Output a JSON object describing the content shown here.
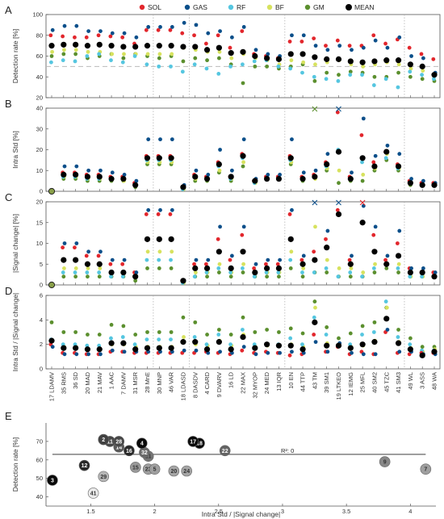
{
  "colors": {
    "SOL": "#e2262c",
    "GAS": "#0b4f8a",
    "RF": "#55c6e0",
    "BF": "#d7e25e",
    "GM": "#5b8f2e",
    "MEAN": "#000000",
    "axis": "#555555",
    "guide": "#aaaaaa"
  },
  "legend": [
    "SOL",
    "GAS",
    "RF",
    "BF",
    "GM",
    "MEAN"
  ],
  "features": [
    "17 LDAMV",
    "35 RMS",
    "36 SD",
    "20 MAD",
    "21 MAV",
    "1 AAC",
    "7 DAMV",
    "31 MSR",
    "28 MnE",
    "30 MNP",
    "46 VAR",
    "18 LDASD",
    "8 DASDV",
    "4 CARD",
    "9 DVARV",
    "16 LD",
    "22 MAX",
    "32 MYOP",
    "24 MED",
    "13 IQR",
    "10 EN",
    "44 TTP",
    "43 TM",
    "39 SM1",
    "19 LTKEO",
    "12 IEMG",
    "25 MFL",
    "40 SM2",
    "45 TZC",
    "41 SM3",
    "49 WL",
    "3 ASS",
    "48 WA"
  ],
  "group_breaks": [
    8.5,
    11.5,
    19.5,
    29.5
  ],
  "chart_data": [
    {
      "id": "A",
      "type": "scatter",
      "ylabel": "Detection rate [%]",
      "ylim": [
        20,
        100
      ],
      "yticks": [
        20,
        40,
        60,
        80,
        100
      ],
      "reference_line": 50,
      "series": [
        {
          "name": "SOL",
          "values": [
            80,
            79,
            78,
            78,
            80,
            79,
            78,
            72,
            85,
            85,
            85,
            82,
            80,
            72,
            80,
            68,
            84,
            62,
            60,
            58,
            74,
            74,
            77,
            70,
            75,
            70,
            70,
            80,
            72,
            76,
            68,
            62,
            57
          ]
        },
        {
          "name": "GAS",
          "values": [
            85,
            89,
            89,
            84,
            84,
            82,
            82,
            78,
            88,
            88,
            88,
            92,
            90,
            82,
            84,
            78,
            88,
            66,
            62,
            60,
            80,
            80,
            70,
            66,
            70,
            66,
            68,
            75,
            68,
            78,
            60,
            58,
            44
          ]
        },
        {
          "name": "RF",
          "values": [
            54,
            56,
            55,
            60,
            62,
            56,
            54,
            60,
            52,
            50,
            50,
            45,
            52,
            48,
            43,
            50,
            52,
            55,
            56,
            50,
            48,
            44,
            40,
            38,
            36,
            42,
            42,
            32,
            38,
            30,
            45,
            42,
            38
          ]
        },
        {
          "name": "BF",
          "values": [
            64,
            66,
            66,
            64,
            64,
            62,
            62,
            62,
            62,
            62,
            62,
            68,
            66,
            64,
            64,
            58,
            62,
            58,
            56,
            52,
            56,
            54,
            52,
            54,
            56,
            52,
            50,
            52,
            54,
            52,
            48,
            46,
            42
          ]
        },
        {
          "name": "GM",
          "values": [
            60,
            62,
            62,
            58,
            60,
            62,
            58,
            62,
            60,
            58,
            60,
            55,
            58,
            56,
            58,
            52,
            34,
            50,
            50,
            48,
            50,
            52,
            36,
            44,
            42,
            45,
            44,
            40,
            40,
            44,
            40,
            38,
            36
          ]
        },
        {
          "name": "MEAN",
          "values": [
            70,
            71,
            71,
            70,
            71,
            70,
            69,
            69,
            70,
            70,
            70,
            69,
            69,
            66,
            68,
            63,
            64,
            60,
            58,
            57,
            62,
            62,
            59,
            57,
            57,
            55,
            54,
            55,
            56,
            56,
            52,
            50,
            42
          ]
        }
      ],
      "crosses": []
    },
    {
      "id": "B",
      "type": "scatter",
      "ylabel": "Intra Std [%]",
      "ylim": [
        0,
        40
      ],
      "yticks": [
        0,
        10,
        20,
        30,
        40
      ],
      "series": [
        {
          "name": "SOL",
          "values": [
            0,
            9,
            9,
            8,
            8,
            7,
            7,
            4,
            17,
            17,
            17,
            2,
            8,
            7,
            14,
            7,
            18,
            5,
            7,
            7,
            17,
            7,
            8,
            14,
            38,
            7,
            27,
            14,
            19,
            13,
            5,
            4,
            4
          ]
        },
        {
          "name": "GAS",
          "values": [
            0,
            12,
            12,
            10,
            10,
            9,
            8,
            5,
            25,
            25,
            25,
            3,
            10,
            8,
            20,
            10,
            25,
            6,
            8,
            8,
            25,
            9,
            10,
            18,
            40,
            9,
            35,
            17,
            22,
            18,
            6,
            5,
            4
          ]
        },
        {
          "name": "RF",
          "values": [
            0,
            7,
            7,
            6,
            6,
            6,
            6,
            3,
            15,
            15,
            15,
            1,
            7,
            6,
            12,
            6,
            16,
            4,
            6,
            6,
            15,
            6,
            7,
            12,
            20,
            6,
            14,
            12,
            16,
            11,
            4,
            3,
            3
          ]
        },
        {
          "name": "BF",
          "values": [
            0,
            7,
            7,
            6,
            6,
            6,
            5,
            3,
            14,
            14,
            14,
            1,
            6,
            6,
            10,
            6,
            14,
            4,
            6,
            6,
            14,
            6,
            6,
            11,
            10,
            6,
            8,
            11,
            18,
            11,
            4,
            3,
            3
          ]
        },
        {
          "name": "GM",
          "values": [
            0,
            6,
            6,
            5,
            5,
            5,
            5,
            2,
            13,
            13,
            13,
            1,
            5,
            5,
            9,
            5,
            12,
            4,
            6,
            6,
            13,
            5,
            6,
            10,
            4,
            5,
            5,
            10,
            15,
            10,
            3,
            3,
            3
          ]
        },
        {
          "name": "MEAN",
          "values": [
            0,
            8,
            8,
            7,
            7,
            6,
            6,
            3,
            16,
            16,
            16,
            2,
            7,
            6,
            13,
            7,
            17,
            5,
            6,
            6,
            16,
            6,
            7,
            13,
            19,
            6,
            16,
            12,
            19,
            12,
            4,
            3,
            3
          ]
        }
      ],
      "crosses": [
        {
          "series": "GM",
          "index": 22,
          "value": 40
        },
        {
          "series": "GAS",
          "index": 24,
          "value": 40
        }
      ]
    },
    {
      "id": "C",
      "type": "scatter",
      "ylabel": "|Signal change| [%]",
      "ylim": [
        0,
        20
      ],
      "yticks": [
        0,
        5,
        10,
        15,
        20
      ],
      "series": [
        {
          "name": "SOL",
          "values": [
            0,
            9,
            9,
            7,
            7,
            5,
            5,
            3,
            17,
            17,
            17,
            1,
            5,
            5,
            11,
            6,
            12,
            4,
            5,
            5,
            17,
            6,
            8,
            11,
            18,
            6,
            19,
            12,
            6,
            10,
            4,
            3,
            3
          ]
        },
        {
          "name": "GAS",
          "values": [
            0,
            10,
            10,
            8,
            8,
            6,
            6,
            3,
            18,
            18,
            18,
            1,
            6,
            6,
            14,
            7,
            14,
            5,
            6,
            6,
            18,
            7,
            9,
            13,
            19,
            7,
            19,
            14,
            7,
            13,
            4,
            4,
            3
          ]
        },
        {
          "name": "RF",
          "values": [
            0,
            3,
            3,
            3,
            3,
            2,
            2,
            2,
            6,
            6,
            6,
            0.5,
            2,
            3,
            4,
            3,
            4,
            2,
            3,
            3,
            6,
            3,
            3,
            4,
            2,
            3,
            2,
            4,
            5,
            4,
            2,
            2,
            2
          ]
        },
        {
          "name": "BF",
          "values": [
            0,
            4,
            4,
            4,
            4,
            3,
            3,
            2,
            8,
            8,
            8,
            0.5,
            3,
            3,
            5,
            3,
            5,
            3,
            3,
            3,
            8,
            4,
            14,
            6,
            4,
            4,
            3,
            5,
            5,
            5,
            2,
            2,
            2
          ]
        },
        {
          "name": "GM",
          "values": [
            0,
            2,
            2,
            2,
            2,
            2,
            2,
            1,
            4,
            4,
            4,
            0.5,
            2,
            2,
            3,
            2,
            3,
            2,
            2,
            2,
            4,
            2,
            3,
            3,
            2,
            2,
            2,
            3,
            4,
            3,
            2,
            2,
            2
          ]
        },
        {
          "name": "MEAN",
          "values": [
            0,
            6,
            6,
            5,
            5,
            3,
            3,
            2,
            11,
            11,
            11,
            1,
            4,
            4,
            8,
            4,
            8,
            3,
            4,
            4,
            11,
            5,
            6,
            9,
            17,
            5,
            15,
            8,
            5,
            7,
            3,
            3,
            2
          ]
        }
      ],
      "crosses": [
        {
          "series": "GAS",
          "index": 22,
          "value": 20
        },
        {
          "series": "GAS",
          "index": 24,
          "value": 20
        },
        {
          "series": "SOL",
          "index": 26,
          "value": 20
        }
      ]
    },
    {
      "id": "D",
      "type": "scatter",
      "ylabel": "Intra Std / |Signal change|",
      "ylim": [
        0,
        6
      ],
      "yticks": [
        0,
        2,
        4,
        6
      ],
      "series": [
        {
          "name": "SOL",
          "values": [
            2.0,
            1.3,
            1.3,
            1.2,
            1.2,
            1.4,
            1.4,
            1.3,
            1.3,
            1.3,
            1.3,
            1.3,
            1.3,
            1.4,
            1.3,
            1.2,
            1.5,
            1.3,
            1.4,
            1.3,
            1.1,
            1.2,
            2.8,
            1.4,
            1.8,
            1.2,
            1.4,
            1.2,
            3.0,
            1.3,
            1.2,
            1.3,
            1.3
          ]
        },
        {
          "name": "GAS",
          "values": [
            1.8,
            1.2,
            1.2,
            1.2,
            1.2,
            1.5,
            1.4,
            1.4,
            1.4,
            1.4,
            1.4,
            1.5,
            1.5,
            1.3,
            1.4,
            1.3,
            1.8,
            1.2,
            1.3,
            1.3,
            1.4,
            1.3,
            2.2,
            1.4,
            2.1,
            1.3,
            1.2,
            1.2,
            3.2,
            1.4,
            1.4,
            1.2,
            1.2
          ]
        },
        {
          "name": "RF",
          "values": [
            2.4,
            2.0,
            2.0,
            1.9,
            1.9,
            2.5,
            2.6,
            2.0,
            2.4,
            2.4,
            2.4,
            2.2,
            2.6,
            2.0,
            2.8,
            2.0,
            3.2,
            2.0,
            2.0,
            2.0,
            2.5,
            2.0,
            4.2,
            2.8,
            1.8,
            2.0,
            2.8,
            3.0,
            5.5,
            2.6,
            2.0,
            1.5,
            1.5
          ]
        },
        {
          "name": "BF",
          "values": [
            2.3,
            1.8,
            1.8,
            1.6,
            1.6,
            2.0,
            2.0,
            1.8,
            1.8,
            1.8,
            1.8,
            2.6,
            2.0,
            1.9,
            2.3,
            1.9,
            2.8,
            1.8,
            1.9,
            1.9,
            2.0,
            1.8,
            5.0,
            2.1,
            2.0,
            1.8,
            1.9,
            2.3,
            5.0,
            2.2,
            1.7,
            1.4,
            1.6
          ]
        },
        {
          "name": "GM",
          "values": [
            3.8,
            3.0,
            3.0,
            2.8,
            2.8,
            3.6,
            3.5,
            2.8,
            3.0,
            3.0,
            3.0,
            4.2,
            3.8,
            2.8,
            3.2,
            2.8,
            4.2,
            3.0,
            3.2,
            3.0,
            3.3,
            2.9,
            5.5,
            3.4,
            2.5,
            2.9,
            3.5,
            3.8,
            5.0,
            3.2,
            2.5,
            1.8,
            1.8
          ]
        },
        {
          "name": "MEAN",
          "values": [
            2.3,
            1.7,
            1.7,
            1.6,
            1.6,
            2.1,
            2.1,
            1.6,
            1.7,
            1.7,
            1.7,
            2.2,
            2.2,
            1.6,
            2.2,
            1.6,
            2.6,
            1.7,
            2.0,
            1.9,
            1.9,
            1.6,
            3.8,
            1.9,
            1.9,
            1.7,
            2.0,
            2.2,
            4.1,
            2.1,
            1.6,
            1.1,
            1.4
          ]
        }
      ],
      "crosses": []
    },
    {
      "id": "E",
      "type": "scatter",
      "xlabel": "Intra Std / |Signal change|",
      "ylabel": "Detection rate [%]",
      "xlim": [
        1.15,
        4.2
      ],
      "ylim": [
        35,
        80
      ],
      "xticks": [
        1.5,
        2,
        2.5,
        3,
        3.5,
        4
      ],
      "yticks": [
        40,
        50,
        60,
        70
      ],
      "fit_label": "R²: 0",
      "fit_y": 63,
      "points": [
        {
          "label": "3",
          "x": 1.2,
          "y": 49
        },
        {
          "label": "12",
          "x": 1.45,
          "y": 57
        },
        {
          "label": "41",
          "x": 1.52,
          "y": 42
        },
        {
          "label": "29",
          "x": 1.6,
          "y": 51
        },
        {
          "label": "2",
          "x": 1.6,
          "y": 71
        },
        {
          "label": "11",
          "x": 1.65,
          "y": 70
        },
        {
          "label": "28",
          "x": 1.72,
          "y": 70
        },
        {
          "label": "14",
          "x": 1.72,
          "y": 67
        },
        {
          "label": "4",
          "x": 1.9,
          "y": 69
        },
        {
          "label": "16",
          "x": 1.8,
          "y": 65
        },
        {
          "label": "32",
          "x": 1.92,
          "y": 64
        },
        {
          "label": "21",
          "x": 1.95,
          "y": 62
        },
        {
          "label": "15",
          "x": 1.85,
          "y": 56
        },
        {
          "label": "23",
          "x": 1.95,
          "y": 55
        },
        {
          "label": "5",
          "x": 2.0,
          "y": 55
        },
        {
          "label": "20",
          "x": 2.15,
          "y": 54
        },
        {
          "label": "24",
          "x": 2.25,
          "y": 54
        },
        {
          "label": "17",
          "x": 2.3,
          "y": 70
        },
        {
          "label": "18",
          "x": 2.35,
          "y": 69
        },
        {
          "label": "22",
          "x": 2.55,
          "y": 65
        },
        {
          "label": "9",
          "x": 3.8,
          "y": 59
        },
        {
          "label": "7",
          "x": 4.12,
          "y": 55
        }
      ]
    }
  ]
}
